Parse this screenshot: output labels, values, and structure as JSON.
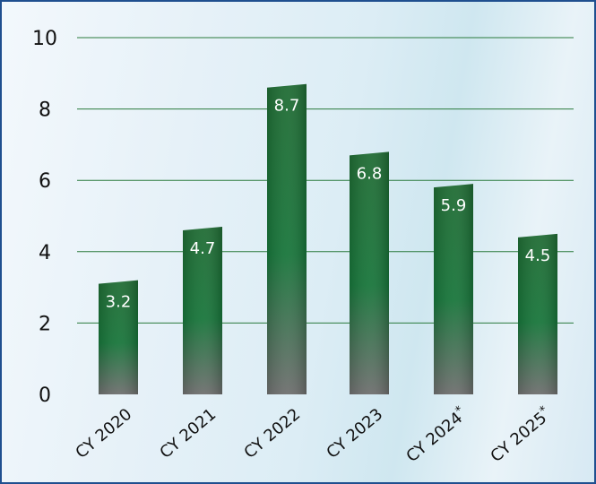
{
  "chart_data": {
    "type": "bar",
    "categories": [
      "CY 2020",
      "CY 2021",
      "CY 2022",
      "CY 2023",
      "CY 2024*",
      "CY 2025*"
    ],
    "values": [
      3.2,
      4.7,
      8.7,
      6.8,
      5.9,
      4.5
    ],
    "data_labels": [
      "3.2",
      "4.7",
      "8.7",
      "6.8",
      "5.9",
      "4.5"
    ],
    "yticks": [
      "0",
      "2",
      "4",
      "6",
      "8",
      "10"
    ],
    "ylim": [
      0,
      10
    ],
    "grid": true,
    "colors": {
      "bar_top": "#1f6b33",
      "bar_mid": "#17753a",
      "bar_bottom": "#6e6e6e",
      "grid": "#2a7a3c",
      "border": "#1f4f8f"
    }
  }
}
